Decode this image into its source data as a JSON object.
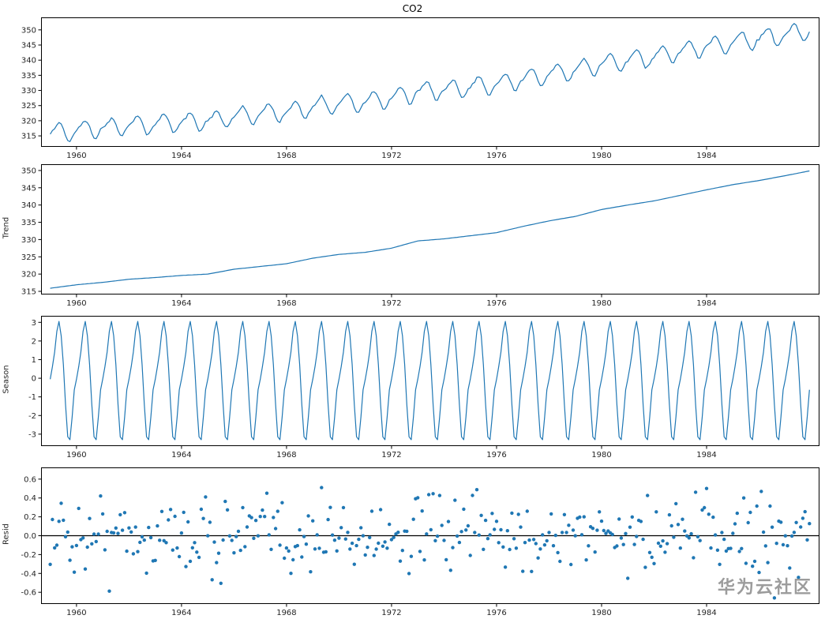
{
  "figure": {
    "watermark": "华为云社区",
    "line_color": "#1f77b4",
    "axis_color": "#000000",
    "text_color": "#262626",
    "background": "#ffffff"
  },
  "chart_data": {
    "title": "CO2",
    "layout": "4 stacked subplots (observed, trend, seasonal, residual) sharing the same x axis",
    "x_start": 1959.0,
    "x_step": "monthly",
    "n_points": 348,
    "xlim": [
      1958.65,
      1988.3
    ],
    "xticks": [
      1960,
      1964,
      1968,
      1972,
      1976,
      1980,
      1984
    ],
    "charts": [
      {
        "id": "observed",
        "kind": "line",
        "series": "observed",
        "ylabel": "",
        "ylim": [
          311.5,
          354.0
        ],
        "yticks": [
          315,
          320,
          325,
          330,
          335,
          340,
          345,
          350
        ],
        "tick_decimals": 0
      },
      {
        "id": "trend",
        "kind": "line",
        "series": "trend",
        "ylabel": "Trend",
        "ylim": [
          314.2,
          351.7
        ],
        "yticks": [
          315,
          320,
          325,
          330,
          335,
          340,
          345,
          350
        ],
        "tick_decimals": 0
      },
      {
        "id": "season",
        "kind": "line",
        "series": "seasonal",
        "ylabel": "Season",
        "ylim": [
          -3.62,
          3.33
        ],
        "yticks": [
          3,
          2,
          1,
          0,
          -1,
          -2,
          -3
        ],
        "tick_decimals": 0
      },
      {
        "id": "resid",
        "kind": "scatter",
        "series": "resid",
        "ylabel": "Resid",
        "ylim": [
          -0.72,
          0.72
        ],
        "yticks": [
          0.6,
          0.4,
          0.2,
          0.0,
          -0.2,
          -0.4,
          -0.6
        ],
        "tick_decimals": 1,
        "zero_line": true
      }
    ],
    "model": {
      "trend_yearly": [
        315.9,
        316.9,
        317.6,
        318.5,
        319.0,
        319.6,
        320.0,
        321.4,
        322.2,
        323.0,
        324.6,
        325.7,
        326.3,
        327.5,
        329.6,
        330.2,
        331.1,
        332.0,
        333.8,
        335.4,
        336.7,
        338.7,
        340.0,
        341.2,
        342.8,
        344.4,
        345.9,
        347.1,
        348.5,
        350.0
      ],
      "seasonal_monthly": [
        -0.05,
        0.62,
        1.4,
        2.52,
        3.05,
        2.28,
        0.72,
        -1.41,
        -3.14,
        -3.3,
        -2.07,
        -0.62
      ],
      "resid_seed": 12345,
      "resid_sigma": 0.21,
      "resid_clamp": 0.66,
      "relation": "observed = trend + seasonal + resid"
    }
  }
}
